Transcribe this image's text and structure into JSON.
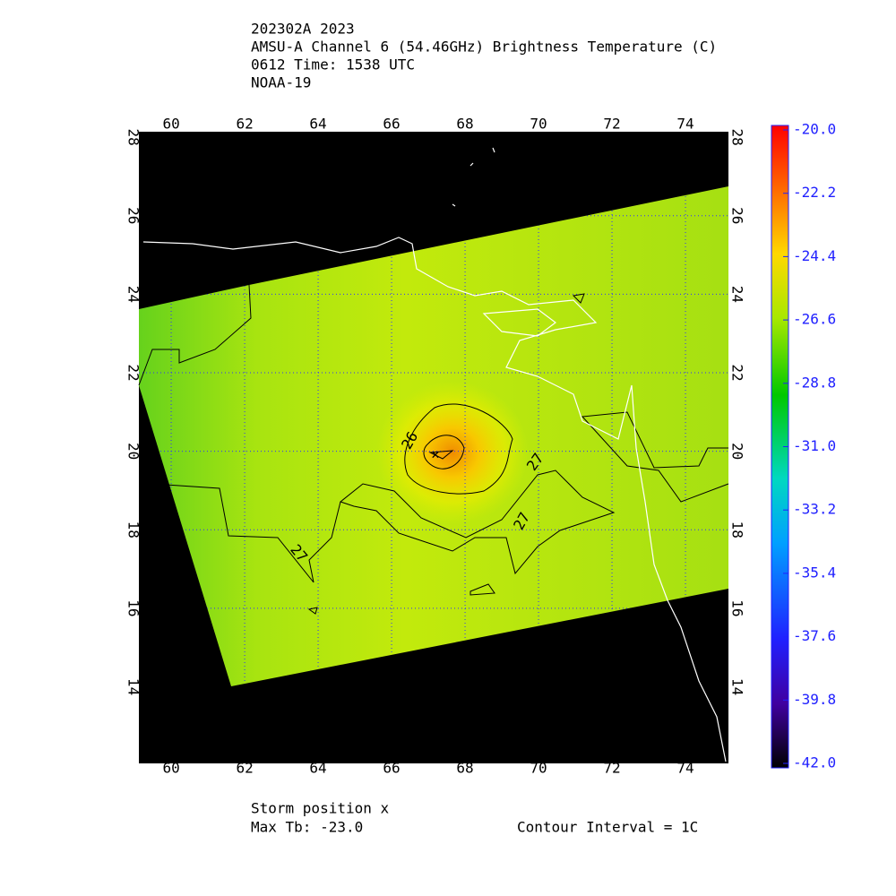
{
  "header": {
    "lines": [
      "202302A 2023",
      "AMSU-A Channel 6 (54.46GHz) Brightness Temperature (C)",
      "0612 Time: 1538 UTC",
      "NOAA-19"
    ]
  },
  "map": {
    "xlim": [
      59.12,
      75.17
    ],
    "ylim": [
      12.05,
      28.14
    ],
    "xticks": [
      60,
      62,
      64,
      66,
      68,
      70,
      72,
      74
    ],
    "yticks": [
      14,
      16,
      18,
      20,
      22,
      24,
      26,
      28
    ],
    "contour_labels": [
      "26",
      "27",
      "27",
      "27"
    ]
  },
  "colorbar": {
    "range": [
      -42.0,
      -20.0
    ],
    "ticks": [
      {
        "value": -20,
        "label": "-20.0"
      },
      {
        "value": -22.2,
        "label": "-22.2"
      },
      {
        "value": -24.4,
        "label": "-24.4"
      },
      {
        "value": -26.6,
        "label": "-26.6"
      },
      {
        "value": -28.8,
        "label": "-28.8"
      },
      {
        "value": -31,
        "label": "-31.0"
      },
      {
        "value": -33.2,
        "label": "-33.2"
      },
      {
        "value": -35.4,
        "label": "-35.4"
      },
      {
        "value": -37.6,
        "label": "-37.6"
      },
      {
        "value": -39.8,
        "label": "-39.8"
      },
      {
        "value": -42,
        "label": "-42.0"
      }
    ]
  },
  "footer": {
    "storm_position": "Storm position x",
    "max_tb": "Max Tb: -23.0",
    "contour_interval": "Contour Interval = 1C"
  }
}
